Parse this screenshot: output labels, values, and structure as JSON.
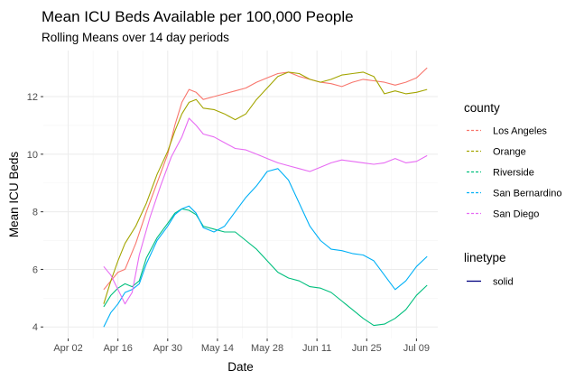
{
  "chart_data": {
    "type": "line",
    "title": "Mean ICU Beds Available per 100,000 People",
    "subtitle": "Rolling Means over 14 day periods",
    "xlabel": "Date",
    "ylabel": "Mean ICU Beds",
    "x_range": [
      "2020-03-26",
      "2020-07-15"
    ],
    "ylim": [
      3.6,
      13.6
    ],
    "x_ticks": [
      {
        "date": "2020-04-02",
        "label": "Apr 02"
      },
      {
        "date": "2020-04-16",
        "label": "Apr 16"
      },
      {
        "date": "2020-04-30",
        "label": "Apr 30"
      },
      {
        "date": "2020-05-14",
        "label": "May 14"
      },
      {
        "date": "2020-05-28",
        "label": "May 28"
      },
      {
        "date": "2020-06-11",
        "label": "Jun 11"
      },
      {
        "date": "2020-06-25",
        "label": "Jun 25"
      },
      {
        "date": "2020-07-09",
        "label": "Jul 09"
      }
    ],
    "y_ticks": [
      4,
      6,
      8,
      10,
      12
    ],
    "grid": true,
    "legend": {
      "title": "county",
      "placement": "right",
      "linetype_title": "linetype",
      "linetype_label": "solid",
      "linetype_color": "#000080"
    },
    "series": [
      {
        "name": "Los Angeles",
        "color": "#F8766D",
        "points": [
          [
            "2020-04-12",
            5.3
          ],
          [
            "2020-04-14",
            5.6
          ],
          [
            "2020-04-16",
            5.9
          ],
          [
            "2020-04-18",
            6.0
          ],
          [
            "2020-04-21",
            6.9
          ],
          [
            "2020-04-24",
            8.0
          ],
          [
            "2020-04-27",
            9.0
          ],
          [
            "2020-04-30",
            10.0
          ],
          [
            "2020-05-02",
            11.0
          ],
          [
            "2020-05-04",
            11.8
          ],
          [
            "2020-05-06",
            12.25
          ],
          [
            "2020-05-08",
            12.15
          ],
          [
            "2020-05-10",
            11.9
          ],
          [
            "2020-05-13",
            12.0
          ],
          [
            "2020-05-16",
            12.1
          ],
          [
            "2020-05-19",
            12.2
          ],
          [
            "2020-05-22",
            12.3
          ],
          [
            "2020-05-25",
            12.5
          ],
          [
            "2020-05-28",
            12.65
          ],
          [
            "2020-05-31",
            12.8
          ],
          [
            "2020-06-03",
            12.85
          ],
          [
            "2020-06-06",
            12.7
          ],
          [
            "2020-06-09",
            12.6
          ],
          [
            "2020-06-12",
            12.5
          ],
          [
            "2020-06-15",
            12.45
          ],
          [
            "2020-06-18",
            12.35
          ],
          [
            "2020-06-21",
            12.5
          ],
          [
            "2020-06-24",
            12.6
          ],
          [
            "2020-06-27",
            12.55
          ],
          [
            "2020-06-30",
            12.5
          ],
          [
            "2020-07-03",
            12.4
          ],
          [
            "2020-07-06",
            12.5
          ],
          [
            "2020-07-09",
            12.65
          ],
          [
            "2020-07-12",
            13.0
          ]
        ]
      },
      {
        "name": "Orange",
        "color": "#A3A500",
        "points": [
          [
            "2020-04-12",
            4.8
          ],
          [
            "2020-04-14",
            5.6
          ],
          [
            "2020-04-16",
            6.3
          ],
          [
            "2020-04-18",
            6.9
          ],
          [
            "2020-04-21",
            7.5
          ],
          [
            "2020-04-24",
            8.3
          ],
          [
            "2020-04-27",
            9.3
          ],
          [
            "2020-04-30",
            10.1
          ],
          [
            "2020-05-02",
            10.8
          ],
          [
            "2020-05-04",
            11.4
          ],
          [
            "2020-05-06",
            11.8
          ],
          [
            "2020-05-08",
            11.9
          ],
          [
            "2020-05-10",
            11.6
          ],
          [
            "2020-05-13",
            11.55
          ],
          [
            "2020-05-16",
            11.4
          ],
          [
            "2020-05-19",
            11.2
          ],
          [
            "2020-05-22",
            11.4
          ],
          [
            "2020-05-25",
            11.9
          ],
          [
            "2020-05-28",
            12.3
          ],
          [
            "2020-05-31",
            12.7
          ],
          [
            "2020-06-03",
            12.85
          ],
          [
            "2020-06-06",
            12.8
          ],
          [
            "2020-06-09",
            12.6
          ],
          [
            "2020-06-12",
            12.5
          ],
          [
            "2020-06-15",
            12.6
          ],
          [
            "2020-06-18",
            12.75
          ],
          [
            "2020-06-21",
            12.8
          ],
          [
            "2020-06-24",
            12.85
          ],
          [
            "2020-06-27",
            12.7
          ],
          [
            "2020-06-30",
            12.1
          ],
          [
            "2020-07-03",
            12.2
          ],
          [
            "2020-07-06",
            12.1
          ],
          [
            "2020-07-09",
            12.15
          ],
          [
            "2020-07-12",
            12.25
          ]
        ]
      },
      {
        "name": "Riverside",
        "color": "#00BF7D",
        "points": [
          [
            "2020-04-12",
            4.7
          ],
          [
            "2020-04-14",
            5.1
          ],
          [
            "2020-04-16",
            5.35
          ],
          [
            "2020-04-18",
            5.5
          ],
          [
            "2020-04-20",
            5.4
          ],
          [
            "2020-04-22",
            5.6
          ],
          [
            "2020-04-24",
            6.4
          ],
          [
            "2020-04-27",
            7.1
          ],
          [
            "2020-04-30",
            7.6
          ],
          [
            "2020-05-02",
            7.95
          ],
          [
            "2020-05-04",
            8.1
          ],
          [
            "2020-05-06",
            8.05
          ],
          [
            "2020-05-08",
            7.9
          ],
          [
            "2020-05-10",
            7.5
          ],
          [
            "2020-05-13",
            7.4
          ],
          [
            "2020-05-16",
            7.3
          ],
          [
            "2020-05-19",
            7.3
          ],
          [
            "2020-05-22",
            7.0
          ],
          [
            "2020-05-25",
            6.7
          ],
          [
            "2020-05-28",
            6.3
          ],
          [
            "2020-05-31",
            5.9
          ],
          [
            "2020-06-03",
            5.7
          ],
          [
            "2020-06-06",
            5.6
          ],
          [
            "2020-06-09",
            5.4
          ],
          [
            "2020-06-12",
            5.35
          ],
          [
            "2020-06-15",
            5.2
          ],
          [
            "2020-06-18",
            4.9
          ],
          [
            "2020-06-21",
            4.6
          ],
          [
            "2020-06-24",
            4.3
          ],
          [
            "2020-06-27",
            4.05
          ],
          [
            "2020-06-30",
            4.1
          ],
          [
            "2020-07-03",
            4.3
          ],
          [
            "2020-07-06",
            4.6
          ],
          [
            "2020-07-09",
            5.1
          ],
          [
            "2020-07-12",
            5.45
          ]
        ]
      },
      {
        "name": "San Bernardino",
        "color": "#00B0F6",
        "points": [
          [
            "2020-04-12",
            4.0
          ],
          [
            "2020-04-14",
            4.5
          ],
          [
            "2020-04-16",
            4.8
          ],
          [
            "2020-04-18",
            5.2
          ],
          [
            "2020-04-20",
            5.3
          ],
          [
            "2020-04-22",
            5.5
          ],
          [
            "2020-04-24",
            6.2
          ],
          [
            "2020-04-27",
            7.0
          ],
          [
            "2020-04-30",
            7.5
          ],
          [
            "2020-05-02",
            7.9
          ],
          [
            "2020-05-04",
            8.1
          ],
          [
            "2020-05-06",
            8.2
          ],
          [
            "2020-05-08",
            7.95
          ],
          [
            "2020-05-10",
            7.45
          ],
          [
            "2020-05-13",
            7.3
          ],
          [
            "2020-05-16",
            7.5
          ],
          [
            "2020-05-19",
            8.0
          ],
          [
            "2020-05-22",
            8.5
          ],
          [
            "2020-05-25",
            8.9
          ],
          [
            "2020-05-28",
            9.4
          ],
          [
            "2020-05-31",
            9.5
          ],
          [
            "2020-06-03",
            9.1
          ],
          [
            "2020-06-06",
            8.3
          ],
          [
            "2020-06-09",
            7.5
          ],
          [
            "2020-06-12",
            7.0
          ],
          [
            "2020-06-15",
            6.7
          ],
          [
            "2020-06-18",
            6.65
          ],
          [
            "2020-06-21",
            6.55
          ],
          [
            "2020-06-24",
            6.5
          ],
          [
            "2020-06-27",
            6.3
          ],
          [
            "2020-06-30",
            5.8
          ],
          [
            "2020-07-03",
            5.3
          ],
          [
            "2020-07-06",
            5.6
          ],
          [
            "2020-07-09",
            6.1
          ],
          [
            "2020-07-12",
            6.45
          ]
        ]
      },
      {
        "name": "San Diego",
        "color": "#E76BF3",
        "points": [
          [
            "2020-04-12",
            6.1
          ],
          [
            "2020-04-14",
            5.8
          ],
          [
            "2020-04-16",
            5.3
          ],
          [
            "2020-04-18",
            4.8
          ],
          [
            "2020-04-20",
            5.2
          ],
          [
            "2020-04-22",
            6.5
          ],
          [
            "2020-04-25",
            7.8
          ],
          [
            "2020-04-28",
            8.9
          ],
          [
            "2020-05-01",
            9.9
          ],
          [
            "2020-05-04",
            10.6
          ],
          [
            "2020-05-06",
            11.25
          ],
          [
            "2020-05-08",
            11.0
          ],
          [
            "2020-05-10",
            10.7
          ],
          [
            "2020-05-13",
            10.6
          ],
          [
            "2020-05-16",
            10.4
          ],
          [
            "2020-05-19",
            10.2
          ],
          [
            "2020-05-22",
            10.15
          ],
          [
            "2020-05-25",
            10.0
          ],
          [
            "2020-05-28",
            9.85
          ],
          [
            "2020-05-31",
            9.7
          ],
          [
            "2020-06-03",
            9.6
          ],
          [
            "2020-06-06",
            9.5
          ],
          [
            "2020-06-09",
            9.4
          ],
          [
            "2020-06-12",
            9.55
          ],
          [
            "2020-06-15",
            9.7
          ],
          [
            "2020-06-18",
            9.8
          ],
          [
            "2020-06-21",
            9.75
          ],
          [
            "2020-06-24",
            9.7
          ],
          [
            "2020-06-27",
            9.65
          ],
          [
            "2020-06-30",
            9.7
          ],
          [
            "2020-07-03",
            9.85
          ],
          [
            "2020-07-06",
            9.7
          ],
          [
            "2020-07-09",
            9.75
          ],
          [
            "2020-07-12",
            9.95
          ]
        ]
      }
    ]
  }
}
